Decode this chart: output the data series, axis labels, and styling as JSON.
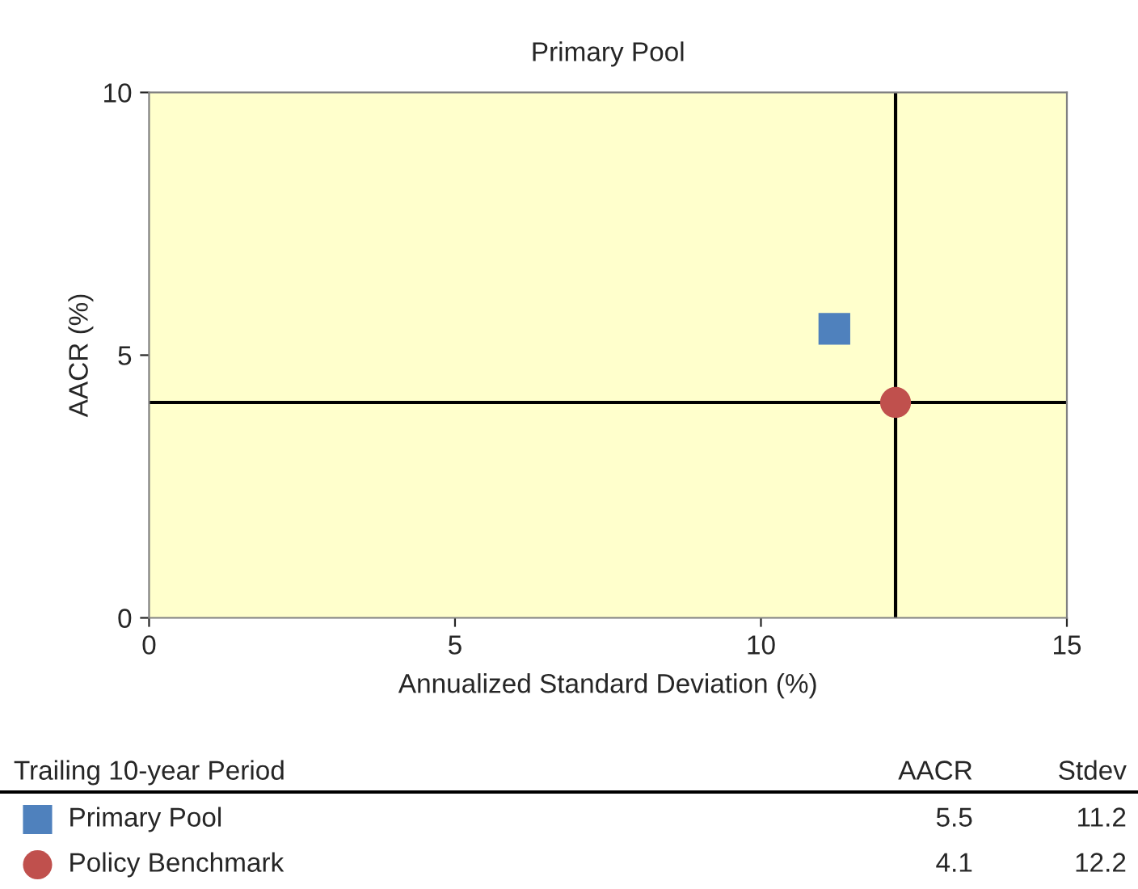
{
  "chart_data": {
    "type": "scatter",
    "title": "Primary Pool",
    "xlabel": "Annualized Standard Deviation (%)",
    "ylabel": "AACR (%)",
    "legend_title": "Trailing 10-year Period",
    "annotations": [
      "AACR",
      "Stdev",
      "5.5",
      "11.2",
      "4.1",
      "12.2"
    ],
    "series": [
      {
        "name": "Primary Pool",
        "color": "#4f81bd",
        "marker": "square",
        "x": [
          11.2
        ],
        "values": [
          5.5
        ]
      },
      {
        "name": "Policy Benchmark",
        "color": "#c0504d",
        "marker": "circle",
        "x": [
          12.2
        ],
        "values": [
          4.1
        ]
      }
    ],
    "ref_lines": [
      {
        "axis": "x",
        "value": 12.2,
        "color": "#000000"
      },
      {
        "axis": "y",
        "value": 4.1,
        "color": "#000000"
      }
    ],
    "xlim": [
      0,
      15
    ],
    "xticks": [
      0,
      5,
      10,
      15
    ],
    "ylim": [
      0,
      10
    ],
    "yticks": [
      0,
      5,
      10
    ],
    "grid": false,
    "legend": "bottom"
  }
}
